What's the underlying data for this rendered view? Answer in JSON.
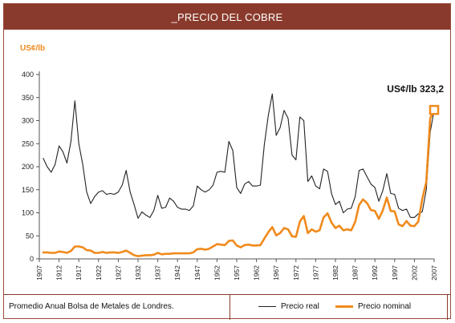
{
  "title": "_PRECIO DEL COBRE",
  "footer": {
    "source": "Promedio Anual Bolsa de Metales de Londres."
  },
  "colors": {
    "header_bg": "#8a3a2c",
    "real_line": "#222222",
    "nominal_line": "#f08a1c"
  },
  "chart_data": {
    "type": "line",
    "title": "_PRECIO DEL COBRE",
    "ylabel": "US¢/lb",
    "xlabel": "",
    "ylim": [
      0,
      400
    ],
    "xlim": [
      1907,
      2007
    ],
    "yticks": [
      0,
      50,
      100,
      150,
      200,
      250,
      300,
      350,
      400
    ],
    "xticks": [
      "1907",
      "1912",
      "1917",
      "1922",
      "1927",
      "1932",
      "1937",
      "1942",
      "1947",
      "1952",
      "1957",
      "1962",
      "1967",
      "1972",
      "1977",
      "1982",
      "1987",
      "1992",
      "1997",
      "2002",
      "2007"
    ],
    "grid": false,
    "legend": "bottom",
    "annotation": {
      "text": "US¢/lb 323,2",
      "x": 2007,
      "y": 323.2
    },
    "series": [
      {
        "name": "Precio real",
        "color": "#222222",
        "points": [
          [
            1908,
            218
          ],
          [
            1909,
            200
          ],
          [
            1910,
            188
          ],
          [
            1911,
            205
          ],
          [
            1912,
            245
          ],
          [
            1913,
            232
          ],
          [
            1914,
            208
          ],
          [
            1915,
            255
          ],
          [
            1916,
            343
          ],
          [
            1917,
            250
          ],
          [
            1918,
            205
          ],
          [
            1919,
            145
          ],
          [
            1920,
            120
          ],
          [
            1921,
            135
          ],
          [
            1922,
            145
          ],
          [
            1923,
            148
          ],
          [
            1924,
            140
          ],
          [
            1925,
            142
          ],
          [
            1926,
            140
          ],
          [
            1927,
            145
          ],
          [
            1928,
            160
          ],
          [
            1929,
            192
          ],
          [
            1930,
            145
          ],
          [
            1931,
            118
          ],
          [
            1932,
            88
          ],
          [
            1933,
            102
          ],
          [
            1934,
            95
          ],
          [
            1935,
            90
          ],
          [
            1936,
            105
          ],
          [
            1937,
            138
          ],
          [
            1938,
            110
          ],
          [
            1939,
            112
          ],
          [
            1940,
            132
          ],
          [
            1941,
            125
          ],
          [
            1942,
            112
          ],
          [
            1943,
            108
          ],
          [
            1944,
            108
          ],
          [
            1945,
            105
          ],
          [
            1946,
            115
          ],
          [
            1947,
            158
          ],
          [
            1948,
            150
          ],
          [
            1949,
            145
          ],
          [
            1950,
            150
          ],
          [
            1951,
            160
          ],
          [
            1952,
            188
          ],
          [
            1953,
            190
          ],
          [
            1954,
            188
          ],
          [
            1955,
            255
          ],
          [
            1956,
            235
          ],
          [
            1957,
            155
          ],
          [
            1958,
            142
          ],
          [
            1959,
            162
          ],
          [
            1960,
            168
          ],
          [
            1961,
            158
          ],
          [
            1962,
            158
          ],
          [
            1963,
            160
          ],
          [
            1964,
            248
          ],
          [
            1965,
            312
          ],
          [
            1966,
            358
          ],
          [
            1967,
            268
          ],
          [
            1968,
            285
          ],
          [
            1969,
            322
          ],
          [
            1970,
            305
          ],
          [
            1971,
            225
          ],
          [
            1972,
            215
          ],
          [
            1973,
            308
          ],
          [
            1974,
            300
          ],
          [
            1975,
            168
          ],
          [
            1976,
            180
          ],
          [
            1977,
            158
          ],
          [
            1978,
            152
          ],
          [
            1979,
            195
          ],
          [
            1980,
            190
          ],
          [
            1981,
            142
          ],
          [
            1982,
            118
          ],
          [
            1983,
            125
          ],
          [
            1984,
            100
          ],
          [
            1985,
            108
          ],
          [
            1986,
            110
          ],
          [
            1987,
            135
          ],
          [
            1988,
            192
          ],
          [
            1989,
            195
          ],
          [
            1990,
            178
          ],
          [
            1991,
            162
          ],
          [
            1992,
            155
          ],
          [
            1993,
            125
          ],
          [
            1994,
            148
          ],
          [
            1995,
            185
          ],
          [
            1996,
            142
          ],
          [
            1997,
            140
          ],
          [
            1998,
            110
          ],
          [
            1999,
            105
          ],
          [
            2000,
            108
          ],
          [
            2001,
            90
          ],
          [
            2002,
            90
          ],
          [
            2003,
            98
          ],
          [
            2004,
            102
          ],
          [
            2005,
            150
          ],
          [
            2006,
            275
          ],
          [
            2007,
            323
          ]
        ]
      },
      {
        "name": "Precio nominal",
        "color": "#f08a1c",
        "points": [
          [
            1908,
            14
          ],
          [
            1909,
            14
          ],
          [
            1910,
            13
          ],
          [
            1911,
            13
          ],
          [
            1912,
            16
          ],
          [
            1913,
            15
          ],
          [
            1914,
            13
          ],
          [
            1915,
            17
          ],
          [
            1916,
            27
          ],
          [
            1917,
            27
          ],
          [
            1918,
            25
          ],
          [
            1919,
            19
          ],
          [
            1920,
            18
          ],
          [
            1921,
            13
          ],
          [
            1922,
            13
          ],
          [
            1923,
            15
          ],
          [
            1924,
            13
          ],
          [
            1925,
            14
          ],
          [
            1926,
            14
          ],
          [
            1927,
            13
          ],
          [
            1928,
            15
          ],
          [
            1929,
            18
          ],
          [
            1930,
            13
          ],
          [
            1931,
            8
          ],
          [
            1932,
            6
          ],
          [
            1933,
            7
          ],
          [
            1934,
            8
          ],
          [
            1935,
            8
          ],
          [
            1936,
            9
          ],
          [
            1937,
            13
          ],
          [
            1938,
            10
          ],
          [
            1939,
            11
          ],
          [
            1940,
            11
          ],
          [
            1941,
            12
          ],
          [
            1942,
            12
          ],
          [
            1943,
            12
          ],
          [
            1944,
            12
          ],
          [
            1945,
            12
          ],
          [
            1946,
            14
          ],
          [
            1947,
            21
          ],
          [
            1948,
            22
          ],
          [
            1949,
            20
          ],
          [
            1950,
            22
          ],
          [
            1951,
            27
          ],
          [
            1952,
            32
          ],
          [
            1953,
            31
          ],
          [
            1954,
            30
          ],
          [
            1955,
            39
          ],
          [
            1956,
            40
          ],
          [
            1957,
            29
          ],
          [
            1958,
            25
          ],
          [
            1959,
            30
          ],
          [
            1960,
            31
          ],
          [
            1961,
            29
          ],
          [
            1962,
            29
          ],
          [
            1963,
            30
          ],
          [
            1964,
            44
          ],
          [
            1965,
            58
          ],
          [
            1966,
            69
          ],
          [
            1967,
            51
          ],
          [
            1968,
            56
          ],
          [
            1969,
            67
          ],
          [
            1970,
            64
          ],
          [
            1971,
            49
          ],
          [
            1972,
            48
          ],
          [
            1973,
            81
          ],
          [
            1974,
            93
          ],
          [
            1975,
            56
          ],
          [
            1976,
            64
          ],
          [
            1977,
            59
          ],
          [
            1978,
            62
          ],
          [
            1979,
            90
          ],
          [
            1980,
            99
          ],
          [
            1981,
            79
          ],
          [
            1982,
            67
          ],
          [
            1983,
            72
          ],
          [
            1984,
            62
          ],
          [
            1985,
            64
          ],
          [
            1986,
            62
          ],
          [
            1987,
            80
          ],
          [
            1988,
            117
          ],
          [
            1989,
            129
          ],
          [
            1990,
            121
          ],
          [
            1991,
            106
          ],
          [
            1992,
            104
          ],
          [
            1993,
            87
          ],
          [
            1994,
            105
          ],
          [
            1995,
            133
          ],
          [
            1996,
            104
          ],
          [
            1997,
            103
          ],
          [
            1998,
            75
          ],
          [
            1999,
            71
          ],
          [
            2000,
            82
          ],
          [
            2001,
            72
          ],
          [
            2002,
            71
          ],
          [
            2003,
            81
          ],
          [
            2004,
            130
          ],
          [
            2005,
            167
          ],
          [
            2006,
            305
          ],
          [
            2007,
            323.2
          ]
        ]
      }
    ]
  }
}
